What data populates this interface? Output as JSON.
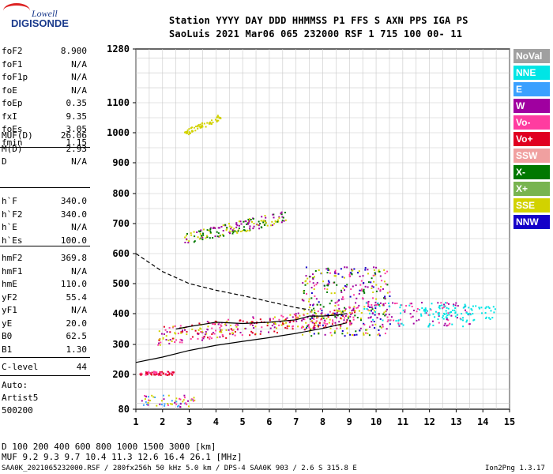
{
  "logo": {
    "line1": "Lowell",
    "line2": "DIGISONDE"
  },
  "header": {
    "line1": "Station YYYY DAY   DDD HHMMSS P1  FFS S AXN PPS IGA PS",
    "line2": "SaoLuis 2021 Mar06 065 232000 RSF     1 715 100 00- 11"
  },
  "params": {
    "group1": [
      {
        "name": "foF2",
        "value": "8.900"
      },
      {
        "name": "foF1",
        "value": "N/A"
      },
      {
        "name": "foF1p",
        "value": "N/A"
      },
      {
        "name": "foE",
        "value": "N/A"
      },
      {
        "name": "foEp",
        "value": "0.35"
      },
      {
        "name": "fxI",
        "value": "9.35"
      },
      {
        "name": "foEs",
        "value": "3.05"
      },
      {
        "name": "fmin",
        "value": "1.15"
      }
    ],
    "group2": [
      {
        "name": "MUF(D)",
        "value": "26.06"
      },
      {
        "name": "M(D)",
        "value": "2.93"
      },
      {
        "name": "D",
        "value": "N/A"
      }
    ],
    "group3": [
      {
        "name": "h`F",
        "value": "340.0"
      },
      {
        "name": "h`F2",
        "value": "340.0"
      },
      {
        "name": "h`E",
        "value": "N/A"
      },
      {
        "name": "h`Es",
        "value": "100.0"
      }
    ],
    "group4": [
      {
        "name": "hmF2",
        "value": "369.8"
      },
      {
        "name": "hmF1",
        "value": "N/A"
      },
      {
        "name": "hmE",
        "value": "110.0"
      },
      {
        "name": "yF2",
        "value": "55.4"
      },
      {
        "name": "yF1",
        "value": "N/A"
      },
      {
        "name": "yE",
        "value": "20.0"
      },
      {
        "name": "B0",
        "value": "62.5"
      },
      {
        "name": "B1",
        "value": "1.30"
      }
    ],
    "clevel": {
      "name": "C-level",
      "value": "44"
    },
    "auto": [
      "Auto:",
      "Artist5",
      "500200"
    ]
  },
  "legend": [
    {
      "label": "NoVal",
      "color": "#a0a0a0"
    },
    {
      "label": "NNE",
      "color": "#00e5e5"
    },
    {
      "label": "E",
      "color": "#3aa0ff"
    },
    {
      "label": "W",
      "color": "#a000a0"
    },
    {
      "label": "Vo-",
      "color": "#ff3ca0"
    },
    {
      "label": "Vo+",
      "color": "#e00020"
    },
    {
      "label": "SSW",
      "color": "#f0a0a0"
    },
    {
      "label": "X-",
      "color": "#007800"
    },
    {
      "label": "X+",
      "color": "#78b450"
    },
    {
      "label": "SSE",
      "color": "#d2d200"
    },
    {
      "label": "NNW",
      "color": "#1400c8"
    }
  ],
  "footer": {
    "d_line": "D     100  200  400  600  800 1000 1500 3000 [km]",
    "muf_line": "MUF   9.2  9.3  9.7 10.4 11.3 12.6 16.4 26.1 [MHz]",
    "file_line": "SAA0K_2021065232000.RSF / 280fx256h 50 kHz 5.0 km / DPS-4 SAA0K 903 / 2.6 S 315.8 E",
    "version": "Ion2Png 1.3.17"
  },
  "chart_data": {
    "type": "scatter",
    "title": "",
    "xlabel": "",
    "ylabel": "",
    "xlim": [
      1,
      15
    ],
    "ylim": [
      80,
      1280
    ],
    "x_ticks": [
      1,
      2,
      3,
      4,
      5,
      6,
      7,
      8,
      9,
      10,
      11,
      12,
      13,
      14,
      15
    ],
    "y_ticks": [
      80,
      200,
      300,
      400,
      500,
      600,
      700,
      800,
      900,
      1000,
      1100,
      1280
    ],
    "y_scale": "mixed",
    "grid": true,
    "legend_position": "right",
    "echo_clusters": [
      {
        "name": "F2 O-trace",
        "x_range": [
          1.8,
          9.2
        ],
        "y_range": [
          320,
          420
        ],
        "colors": [
          "#ff3ca0",
          "#d2d200",
          "#e00020",
          "#a000a0"
        ]
      },
      {
        "name": "F2 spread",
        "x_range": [
          7.2,
          10.5
        ],
        "y_range": [
          330,
          560
        ],
        "colors": [
          "#d2d200",
          "#a000a0",
          "#ff3ca0",
          "#1400c8",
          "#007800"
        ]
      },
      {
        "name": "F2 extension",
        "x_range": [
          9.5,
          13.5
        ],
        "y_range": [
          360,
          440
        ],
        "colors": [
          "#ff3ca0",
          "#a000a0",
          "#00e5e5"
        ]
      },
      {
        "name": "NNE tail",
        "x_range": [
          11.5,
          14.5
        ],
        "y_range": [
          380,
          430
        ],
        "colors": [
          "#00e5e5"
        ]
      },
      {
        "name": "2-hop F",
        "x_range": [
          2.8,
          6.6
        ],
        "y_range": [
          640,
          740
        ],
        "colors": [
          "#d2d200",
          "#a000a0",
          "#007800"
        ]
      },
      {
        "name": "3-hop F",
        "x_range": [
          2.8,
          4.2
        ],
        "y_range": [
          995,
          1060
        ],
        "colors": [
          "#d2d200"
        ]
      },
      {
        "name": "Es",
        "x_range": [
          1.1,
          3.2
        ],
        "y_range": [
          90,
          130
        ],
        "colors": [
          "#3aa0ff",
          "#a000a0",
          "#ff3ca0",
          "#d2d200"
        ]
      },
      {
        "name": "2Es",
        "x_range": [
          1.1,
          2.4
        ],
        "y_range": [
          200,
          212
        ],
        "colors": [
          "#ff3ca0",
          "#e00020"
        ]
      }
    ],
    "profile_solid": {
      "x": [
        1.0,
        2.0,
        3.0,
        4.0,
        5.0,
        6.0,
        7.0,
        8.0,
        8.9
      ],
      "y": [
        240,
        258,
        280,
        297,
        310,
        322,
        336,
        352,
        370
      ]
    },
    "profile_dashed": {
      "x": [
        1.0,
        2.0,
        3.0,
        4.0,
        5.0,
        6.0,
        7.0,
        7.5
      ],
      "y": [
        600,
        540,
        500,
        478,
        460,
        440,
        420,
        413
      ]
    },
    "trace_solid": {
      "x": [
        2.5,
        3.0,
        4.0,
        5.0,
        6.0,
        7.0,
        7.5,
        8.0,
        8.5,
        8.9
      ],
      "y": [
        350,
        358,
        372,
        368,
        372,
        380,
        392,
        392,
        395,
        400
      ]
    }
  }
}
